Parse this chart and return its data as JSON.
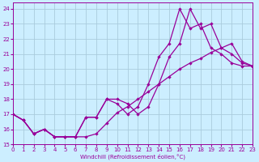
{
  "xlabel": "Windchill (Refroidissement éolien,°C)",
  "background_color": "#cceeff",
  "grid_color": "#aaccdd",
  "line_color": "#990099",
  "xlim": [
    0,
    23
  ],
  "ylim": [
    15,
    24.4
  ],
  "xticks": [
    0,
    1,
    2,
    3,
    4,
    5,
    6,
    7,
    8,
    9,
    10,
    11,
    12,
    13,
    14,
    15,
    16,
    17,
    18,
    19,
    20,
    21,
    22,
    23
  ],
  "yticks": [
    15,
    16,
    17,
    18,
    19,
    20,
    21,
    22,
    23,
    24
  ],
  "line1_x": [
    0,
    1,
    2,
    3,
    4,
    5,
    6,
    7,
    8,
    9,
    10,
    11,
    12,
    13,
    14,
    15,
    16,
    17,
    18,
    19,
    20,
    21,
    22,
    23
  ],
  "line1_y": [
    17.0,
    16.6,
    15.7,
    16.0,
    15.5,
    15.5,
    15.5,
    15.5,
    15.7,
    16.4,
    17.1,
    17.5,
    18.0,
    18.5,
    19.0,
    19.5,
    20.0,
    20.4,
    20.7,
    21.1,
    21.4,
    21.7,
    20.5,
    20.2
  ],
  "line2_x": [
    0,
    1,
    2,
    3,
    4,
    5,
    6,
    7,
    8,
    9,
    10,
    11,
    12,
    13,
    14,
    15,
    16,
    17,
    18,
    19,
    20,
    21,
    22,
    23
  ],
  "line2_y": [
    17.0,
    16.6,
    15.7,
    16.0,
    15.5,
    15.5,
    15.5,
    16.8,
    16.8,
    18.0,
    18.0,
    17.7,
    17.0,
    17.5,
    19.0,
    20.8,
    21.7,
    24.0,
    22.7,
    23.0,
    21.4,
    21.0,
    20.4,
    20.2
  ],
  "line3_x": [
    0,
    1,
    2,
    3,
    4,
    5,
    6,
    7,
    8,
    9,
    10,
    11,
    12,
    13,
    14,
    15,
    16,
    17,
    18,
    19,
    20,
    21,
    22,
    23
  ],
  "line3_y": [
    17.0,
    16.6,
    15.7,
    16.0,
    15.5,
    15.5,
    15.5,
    16.8,
    16.8,
    18.0,
    17.7,
    17.0,
    17.5,
    19.0,
    20.8,
    21.7,
    24.0,
    22.7,
    23.0,
    21.4,
    21.0,
    20.4,
    20.2,
    20.2
  ]
}
